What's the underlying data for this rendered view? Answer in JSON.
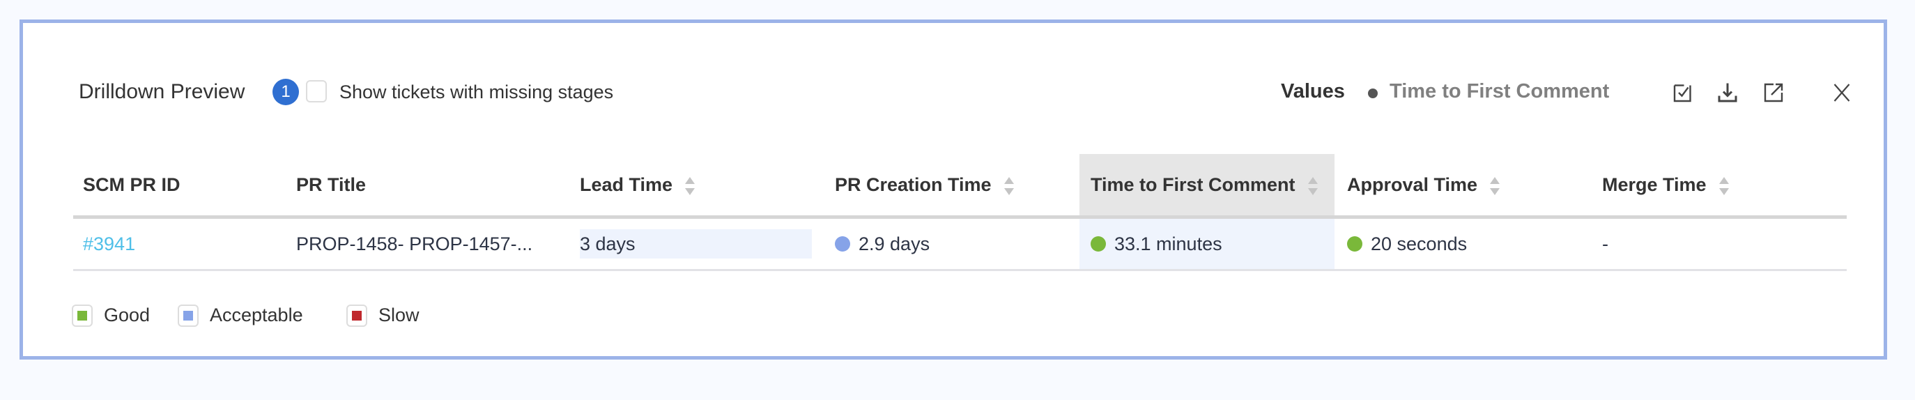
{
  "header": {
    "title": "Drilldown Preview",
    "badge_count": "1",
    "missing_stages_label": "Show tickets with missing stages",
    "missing_stages_checked": false,
    "values_label": "Values",
    "metric_label": "Time to First Comment",
    "icons": [
      "checkbox-select-icon",
      "download-icon",
      "open-external-icon",
      "close-icon"
    ]
  },
  "table": {
    "columns": [
      {
        "label": "SCM PR ID",
        "sortable": false
      },
      {
        "label": "PR Title",
        "sortable": false
      },
      {
        "label": "Lead Time",
        "sortable": true
      },
      {
        "label": "PR Creation Time",
        "sortable": true
      },
      {
        "label": "Time to First Comment",
        "sortable": true,
        "active": true
      },
      {
        "label": "Approval Time",
        "sortable": true
      },
      {
        "label": "Merge Time",
        "sortable": true
      }
    ],
    "rows": [
      {
        "id": "#3941",
        "title": "PROP-1458- PROP-1457-...",
        "lead_time": "3 days",
        "pr_creation_time": {
          "value": "2.9 days",
          "status": "acceptable"
        },
        "time_to_first_comment": {
          "value": "33.1 minutes",
          "status": "good"
        },
        "approval_time": {
          "value": "20 seconds",
          "status": "good"
        },
        "merge_time": "-"
      }
    ]
  },
  "legend": [
    {
      "label": "Good",
      "color": "#7ab83a"
    },
    {
      "label": "Acceptable",
      "color": "#86a3e8"
    },
    {
      "label": "Slow",
      "color": "#c0282d"
    }
  ],
  "colors": {
    "border": "#9cb3e8",
    "accent": "#2f6fd1",
    "link": "#4fbfe8",
    "good": "#7ab83a",
    "acceptable": "#86a3e8",
    "slow": "#c0282d"
  }
}
